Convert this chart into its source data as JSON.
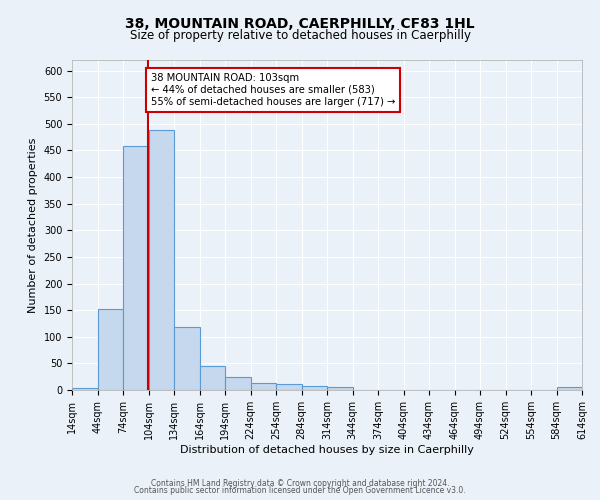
{
  "title": "38, MOUNTAIN ROAD, CAERPHILLY, CF83 1HL",
  "subtitle": "Size of property relative to detached houses in Caerphilly",
  "xlabel": "Distribution of detached houses by size in Caerphilly",
  "ylabel": "Number of detached properties",
  "bin_edges": [
    14,
    44,
    74,
    104,
    134,
    164,
    194,
    224,
    254,
    284,
    314,
    344,
    374,
    404,
    434,
    464,
    494,
    524,
    554,
    584,
    614
  ],
  "counts": [
    3,
    152,
    459,
    488,
    118,
    46,
    25,
    14,
    11,
    8,
    5,
    0,
    0,
    0,
    0,
    0,
    0,
    0,
    0,
    5
  ],
  "bar_color": "#c5d8ed",
  "bar_edge_color": "#5b9bd5",
  "property_size": 103,
  "vline_color": "#cc0000",
  "annotation_line1": "38 MOUNTAIN ROAD: 103sqm",
  "annotation_line2": "← 44% of detached houses are smaller (583)",
  "annotation_line3": "55% of semi-detached houses are larger (717) →",
  "annotation_box_edge_color": "#cc0000",
  "annotation_box_face_color": "#ffffff",
  "footer_line1": "Contains HM Land Registry data © Crown copyright and database right 2024.",
  "footer_line2": "Contains public sector information licensed under the Open Government Licence v3.0.",
  "background_color": "#eaf1f8",
  "plot_background_color": "#eaf1f8",
  "grid_color": "#ffffff",
  "ylim": [
    0,
    620
  ],
  "yticks": [
    0,
    50,
    100,
    150,
    200,
    250,
    300,
    350,
    400,
    450,
    500,
    550,
    600
  ],
  "title_fontsize": 10,
  "subtitle_fontsize": 8.5,
  "axis_label_fontsize": 8,
  "tick_fontsize": 7,
  "footer_fontsize": 5.5
}
